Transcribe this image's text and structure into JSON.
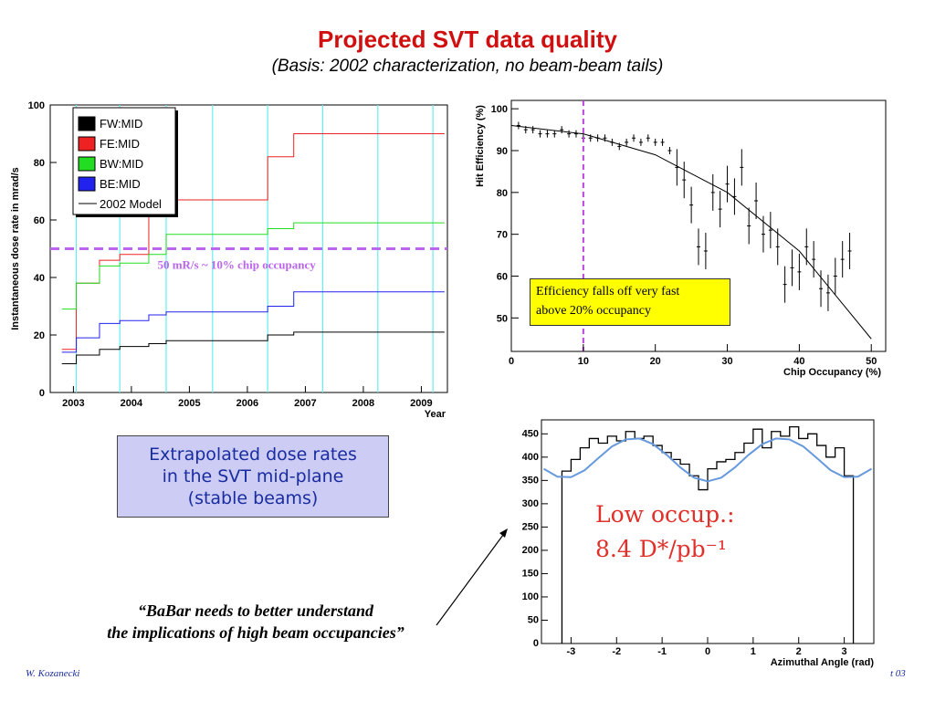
{
  "header": {
    "title": "Projected SVT data quality",
    "subtitle": "(Basis: 2002 characterization, no beam-beam tails)"
  },
  "caption": {
    "line1": "Extrapolated dose rates",
    "line2": "in the SVT mid-plane",
    "line3": "(stable beams)"
  },
  "quote": {
    "line1": "“BaBar needs to better understand",
    "line2": "the implications of high beam occupancies”"
  },
  "footer": {
    "author": "W. Kozanecki",
    "right": "t 03"
  },
  "colors": {
    "title": "#d01010",
    "caption_bg": "#ccccf5",
    "caption_text": "#1a2d9e",
    "note_bg": "#ffff00"
  },
  "chart_data": [
    {
      "type": "line",
      "ylabel": "Instantaneous dose rate in mrad/s",
      "xlabel": "Year",
      "ylim": [
        0,
        100
      ],
      "yticks": [
        0,
        20,
        40,
        60,
        80,
        100
      ],
      "xticks": [
        "2003",
        "2004",
        "2005",
        "2006",
        "2007",
        "2008",
        "2009"
      ],
      "xlim": [
        2002.6,
        2009.45
      ],
      "legend_position": "top-left",
      "legend": [
        {
          "label": "FW:MID",
          "color": "#000000"
        },
        {
          "label": "FE:MID",
          "color": "#ee2222"
        },
        {
          "label": "BW:MID",
          "color": "#22dd22"
        },
        {
          "label": "BE:MID",
          "color": "#2222ee"
        },
        {
          "label": "2002 Model",
          "color": "#000000"
        }
      ],
      "threshold": {
        "value": 50,
        "label": "50 mR/s ~ 10% chip occupancy"
      },
      "shutdown_markers": [
        2003.05,
        2003.8,
        2004.6,
        2005.4,
        2006.35,
        2007.3,
        2008.25,
        2009.2
      ],
      "series": [
        {
          "name": "FE:MID",
          "x": [
            2002.8,
            2003.05,
            2003.45,
            2003.8,
            2004.3,
            2004.6,
            2005.1,
            2005.4,
            2005.9,
            2006.35,
            2006.8,
            2007.3,
            2007.6,
            2008.25,
            2008.55,
            2009.2
          ],
          "y": [
            15,
            38,
            46,
            48,
            62,
            67,
            67,
            67,
            67,
            82,
            90,
            90,
            90,
            90,
            90,
            90
          ]
        },
        {
          "name": "BW:MID",
          "x": [
            2002.8,
            2003.05,
            2003.45,
            2003.8,
            2004.3,
            2004.6,
            2005.1,
            2005.4,
            2005.9,
            2006.35,
            2006.8,
            2007.3,
            2007.6,
            2008.25,
            2008.55,
            2009.2
          ],
          "y": [
            29,
            38,
            44,
            45,
            48,
            55,
            55,
            55,
            55,
            57,
            59,
            59,
            59,
            59,
            59,
            59
          ]
        },
        {
          "name": "BE:MID",
          "x": [
            2002.8,
            2003.05,
            2003.45,
            2003.8,
            2004.3,
            2004.6,
            2005.1,
            2005.4,
            2005.9,
            2006.35,
            2006.8,
            2007.3,
            2007.6,
            2008.25,
            2008.55,
            2009.2
          ],
          "y": [
            14,
            19,
            24,
            25,
            27,
            28,
            28,
            28,
            28,
            30,
            35,
            35,
            35,
            35,
            35,
            35
          ]
        },
        {
          "name": "FW:MID",
          "x": [
            2002.8,
            2003.05,
            2003.45,
            2003.8,
            2004.3,
            2004.6,
            2005.1,
            2005.4,
            2005.9,
            2006.35,
            2006.8,
            2007.3,
            2007.6,
            2008.25,
            2008.55,
            2009.2
          ],
          "y": [
            10,
            13,
            15,
            16,
            17,
            18,
            18,
            18,
            18,
            20,
            21,
            21,
            21,
            21,
            21,
            21
          ]
        }
      ]
    },
    {
      "type": "scatter",
      "xlabel": "Chip Occupancy (%)",
      "ylabel": "Hit Efficiency (%)",
      "xlim": [
        0,
        52
      ],
      "ylim": [
        42,
        102
      ],
      "xticks": [
        0,
        10,
        20,
        30,
        40,
        50
      ],
      "yticks": [
        50,
        60,
        70,
        80,
        90,
        100
      ],
      "vline": 10,
      "annotation_line1": "Efficiency falls off very fast",
      "annotation_line2": "above 20% occupancy",
      "x": [
        1,
        2,
        3,
        4,
        5,
        6,
        7,
        8,
        9,
        10,
        11,
        12,
        13,
        14,
        15,
        16,
        17,
        18,
        19,
        20,
        21,
        22,
        23,
        24,
        25,
        26,
        27,
        28,
        29,
        30,
        31,
        32,
        33,
        34,
        35,
        36,
        37,
        38,
        39,
        40,
        41,
        42,
        43,
        44,
        45,
        46,
        47
      ],
      "y": [
        96,
        95,
        95,
        94,
        94,
        94,
        95,
        94,
        94,
        93,
        93,
        93,
        93,
        92,
        91,
        92,
        93,
        92,
        93,
        92,
        92,
        90,
        86,
        83,
        77,
        67,
        66,
        80,
        76,
        82,
        79,
        86,
        72,
        78,
        70,
        71,
        67,
        58,
        62,
        61,
        67,
        64,
        57,
        56,
        60,
        64,
        66
      ],
      "model": {
        "x": [
          0,
          10,
          20,
          30,
          40,
          50
        ],
        "y": [
          96,
          94,
          89,
          80,
          66,
          45
        ]
      }
    },
    {
      "type": "line",
      "xlabel": "Azimuthal Angle (rad)",
      "xlim": [
        -3.65,
        3.65
      ],
      "ylim": [
        0,
        480
      ],
      "xticks": [
        -3,
        -2,
        -1,
        0,
        1,
        2,
        3
      ],
      "yticks": [
        0,
        50,
        100,
        150,
        200,
        250,
        300,
        350,
        400,
        450
      ],
      "annotation_line1": "Low occup.:",
      "annotation_line2": "8.4 D*/pb⁻¹",
      "series": [
        {
          "name": "data",
          "x": [
            -3.1,
            -2.9,
            -2.7,
            -2.5,
            -2.3,
            -2.1,
            -1.9,
            -1.7,
            -1.5,
            -1.3,
            -1.1,
            -0.9,
            -0.7,
            -0.5,
            -0.3,
            -0.1,
            0.1,
            0.3,
            0.5,
            0.7,
            0.9,
            1.1,
            1.3,
            1.5,
            1.7,
            1.9,
            2.1,
            2.3,
            2.5,
            2.7,
            2.9,
            3.1
          ],
          "y": [
            370,
            395,
            420,
            440,
            430,
            445,
            435,
            455,
            440,
            445,
            425,
            410,
            395,
            385,
            360,
            330,
            375,
            390,
            395,
            410,
            430,
            460,
            420,
            455,
            445,
            465,
            440,
            450,
            425,
            400,
            420,
            360
          ]
        },
        {
          "name": "fit",
          "x": [
            -3.6,
            -3.3,
            -3.0,
            -2.7,
            -2.4,
            -2.1,
            -1.8,
            -1.5,
            -1.2,
            -0.9,
            -0.6,
            -0.3,
            0.0,
            0.3,
            0.6,
            0.9,
            1.2,
            1.5,
            1.8,
            2.1,
            2.4,
            2.7,
            3.0,
            3.3,
            3.6
          ],
          "y": [
            375,
            358,
            357,
            372,
            398,
            423,
            438,
            440,
            428,
            405,
            378,
            356,
            348,
            356,
            378,
            405,
            428,
            440,
            438,
            423,
            398,
            372,
            357,
            358,
            375
          ]
        }
      ]
    }
  ]
}
